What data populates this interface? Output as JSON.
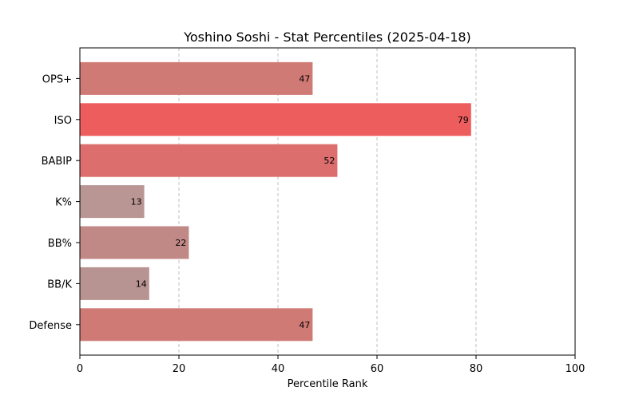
{
  "chart_data": {
    "type": "bar",
    "orientation": "horizontal",
    "title": "Yoshino Soshi - Stat Percentiles (2025-04-18)",
    "xlabel": "Percentile Rank",
    "ylabel": "",
    "xlim": [
      0,
      100
    ],
    "xticks": [
      0,
      20,
      40,
      60,
      80,
      100
    ],
    "grid": "x-dashed",
    "categories": [
      "OPS+",
      "ISO",
      "BABIP",
      "K%",
      "BB%",
      "BB/K",
      "Defense"
    ],
    "values": [
      47,
      79,
      52,
      13,
      22,
      14,
      47
    ],
    "colors": [
      "#d07a76",
      "#ee5d5d",
      "#dc6f6d",
      "#b99593",
      "#c18986",
      "#b79391",
      "#d07a76"
    ]
  }
}
